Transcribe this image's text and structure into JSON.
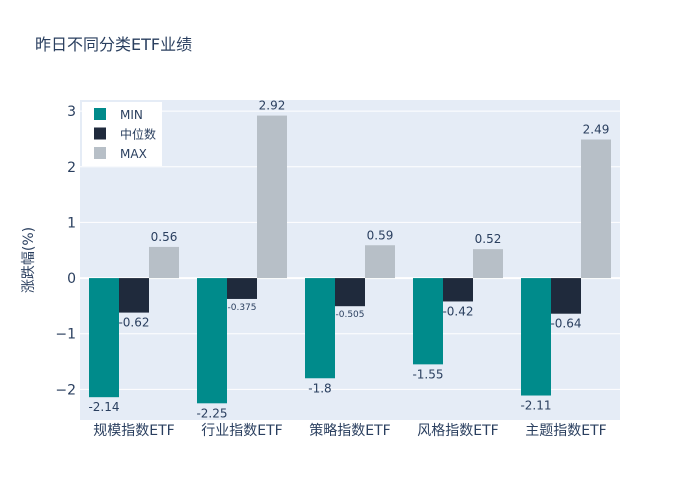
{
  "chart_data": {
    "type": "bar",
    "title": "昨日不同分类ETF业绩",
    "xlabel": "",
    "ylabel": "涨跌幅(%)",
    "ylim": [
      -2.55,
      3.2
    ],
    "yticks": [
      -2,
      -1,
      0,
      1,
      2,
      3
    ],
    "ytick_labels": [
      "−2",
      "−1",
      "0",
      "1",
      "2",
      "3"
    ],
    "grid": true,
    "legend_position": "top-left",
    "categories": [
      "规模指数ETF",
      "行业指数ETF",
      "策略指数ETF",
      "风格指数ETF",
      "主题指数ETF"
    ],
    "series": [
      {
        "name": "MIN",
        "color": "#008b8b",
        "values": [
          -2.14,
          -2.25,
          -1.8,
          -1.55,
          -2.11
        ],
        "labels": [
          "-2.14",
          "-2.25",
          "-1.8",
          "-1.55",
          "-2.11"
        ]
      },
      {
        "name": "中位数",
        "color": "#1f2a3c",
        "values": [
          -0.62,
          -0.375,
          -0.505,
          -0.42,
          -0.64
        ],
        "labels": [
          "-0.62",
          "-0.375",
          "-0.505",
          "-0.42",
          "-0.64"
        ]
      },
      {
        "name": "MAX",
        "color": "#b7bfc7",
        "values": [
          0.56,
          2.92,
          0.59,
          0.52,
          2.49
        ],
        "labels": [
          "0.56",
          "2.92",
          "0.59",
          "0.52",
          "2.49"
        ]
      }
    ]
  }
}
